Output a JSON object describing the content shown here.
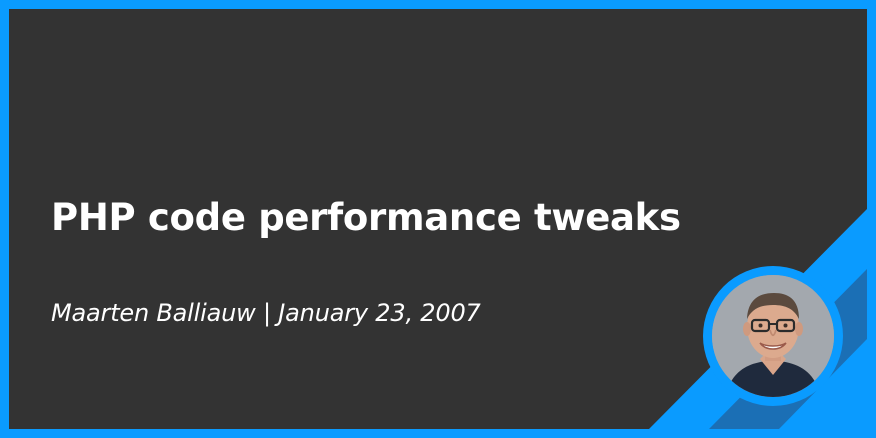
{
  "post": {
    "title": "PHP code performance tweaks",
    "author": "Maarten Balliauw",
    "separator": "|",
    "date": "January 23, 2007"
  },
  "colors": {
    "frame": "#0a9bff",
    "panel": "#333333",
    "stripe_dark": "#1b6fb5",
    "text": "#ffffff"
  },
  "avatar": {
    "icon": "author-portrait"
  }
}
